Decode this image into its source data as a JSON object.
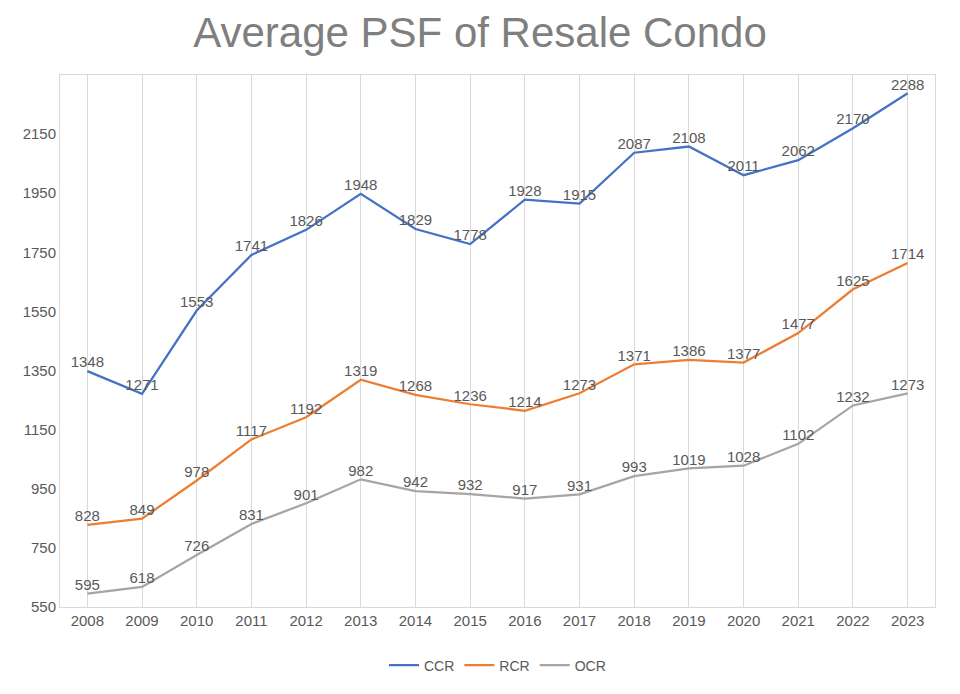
{
  "chart_data": {
    "type": "line",
    "title": "Average PSF of Resale Condo",
    "categories": [
      "2008",
      "2009",
      "2010",
      "2011",
      "2012",
      "2013",
      "2014",
      "2015",
      "2016",
      "2017",
      "2018",
      "2019",
      "2020",
      "2021",
      "2022",
      "2023"
    ],
    "series": [
      {
        "name": "CCR",
        "color": "#4472c4",
        "values": [
          1348,
          1271,
          1553,
          1741,
          1826,
          1948,
          1829,
          1778,
          1928,
          1915,
          2087,
          2108,
          2011,
          2062,
          2170,
          2288
        ]
      },
      {
        "name": "RCR",
        "color": "#ed7d31",
        "values": [
          828,
          849,
          978,
          1117,
          1192,
          1319,
          1268,
          1236,
          1214,
          1273,
          1371,
          1386,
          1377,
          1477,
          1625,
          1714
        ]
      },
      {
        "name": "OCR",
        "color": "#a5a5a5",
        "values": [
          595,
          618,
          726,
          831,
          901,
          982,
          942,
          932,
          917,
          931,
          993,
          1019,
          1028,
          1102,
          1232,
          1273
        ]
      }
    ],
    "ylim": [
      550,
      2350
    ],
    "yticks": [
      550,
      750,
      950,
      1150,
      1350,
      1550,
      1750,
      1950,
      2150
    ],
    "grid": true,
    "legend": "bottom",
    "data_labels": true
  }
}
